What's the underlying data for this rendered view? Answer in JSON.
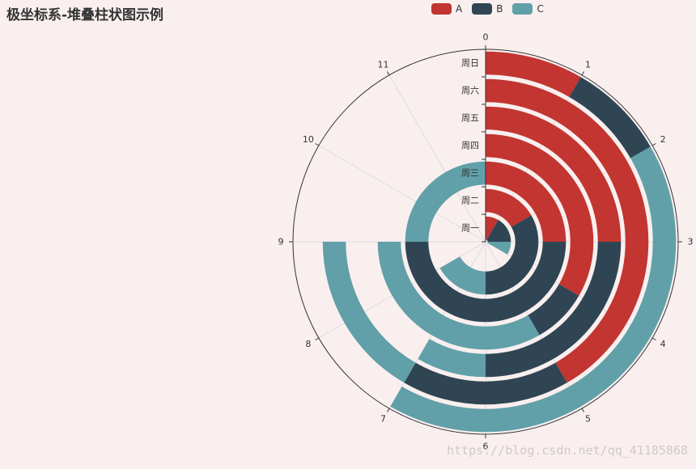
{
  "title": "极坐标系-堆叠柱状图示例",
  "watermark": "https://blog.csdn.net/qq_41185868",
  "chart_data": {
    "type": "bar",
    "coordinate": "polar",
    "stacked": true,
    "title": "极坐标系-堆叠柱状图示例",
    "categories": [
      "周一",
      "周二",
      "周三",
      "周四",
      "周五",
      "周六",
      "周日"
    ],
    "angle_axis": {
      "min": 0,
      "max": 12,
      "ticks": [
        0,
        1,
        2,
        3,
        4,
        5,
        6,
        7,
        8,
        9,
        10,
        11
      ]
    },
    "legend_position": "top",
    "series": [
      {
        "name": "A",
        "color": "#c23531",
        "values": [
          1,
          2,
          3,
          4,
          3,
          5,
          1
        ]
      },
      {
        "name": "B",
        "color": "#2f4554",
        "values": [
          2,
          4,
          6,
          1,
          3,
          2,
          1
        ]
      },
      {
        "name": "C",
        "color": "#61a0a8",
        "values": [
          1,
          2,
          3,
          4,
          1,
          2,
          5
        ]
      }
    ]
  }
}
